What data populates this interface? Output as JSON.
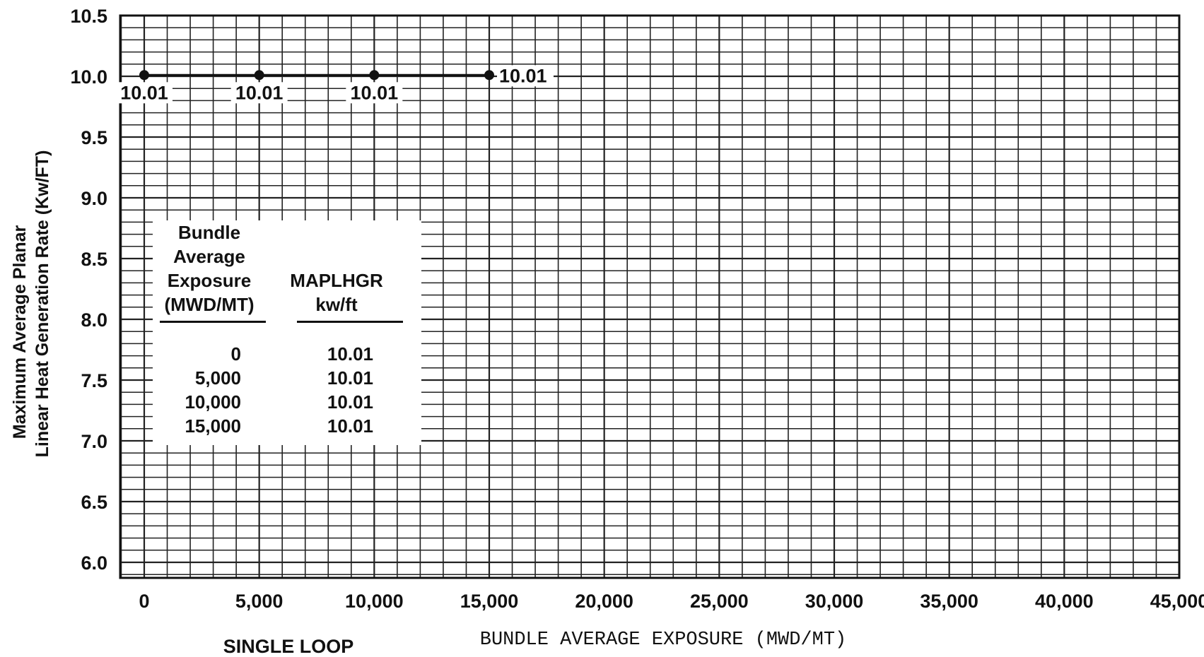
{
  "chart_data": {
    "type": "line",
    "x": [
      0,
      5000,
      10000,
      15000
    ],
    "series": [
      {
        "values": [
          10.01,
          10.01,
          10.01,
          10.01
        ],
        "point_labels": [
          "10.01",
          "10.01",
          "10.01",
          "10.01"
        ]
      }
    ],
    "xlabel": "BUNDLE AVERAGE EXPOSURE (MWD/MT)",
    "ylabel": [
      "Maximum Average Planar",
      "Linear Heat Generation Rate (Kw/FT)"
    ],
    "xlim": [
      0,
      45000
    ],
    "ylim": [
      6.0,
      10.5
    ],
    "x_ticks": [
      "0",
      "5,000",
      "10,000",
      "15,000",
      "20,000",
      "25,000",
      "30,000",
      "35,000",
      "40,000",
      "45,000"
    ],
    "y_ticks": [
      "10.5",
      "10.0",
      "9.5",
      "9.0",
      "8.5",
      "8.0",
      "7.5",
      "7.0",
      "6.5",
      "6.0"
    ],
    "grid": true,
    "note": "SINGLE LOOP",
    "table": {
      "headers": [
        [
          "Bundle",
          "Average",
          "Exposure",
          "(MWD/MT)"
        ],
        [
          "MAPLHGR",
          "kw/ft"
        ]
      ],
      "exposure": [
        "0",
        "5,000",
        "10,000",
        "15,000"
      ],
      "maplhgr": [
        "10.01",
        "10.01",
        "10.01",
        "10.01"
      ]
    }
  }
}
